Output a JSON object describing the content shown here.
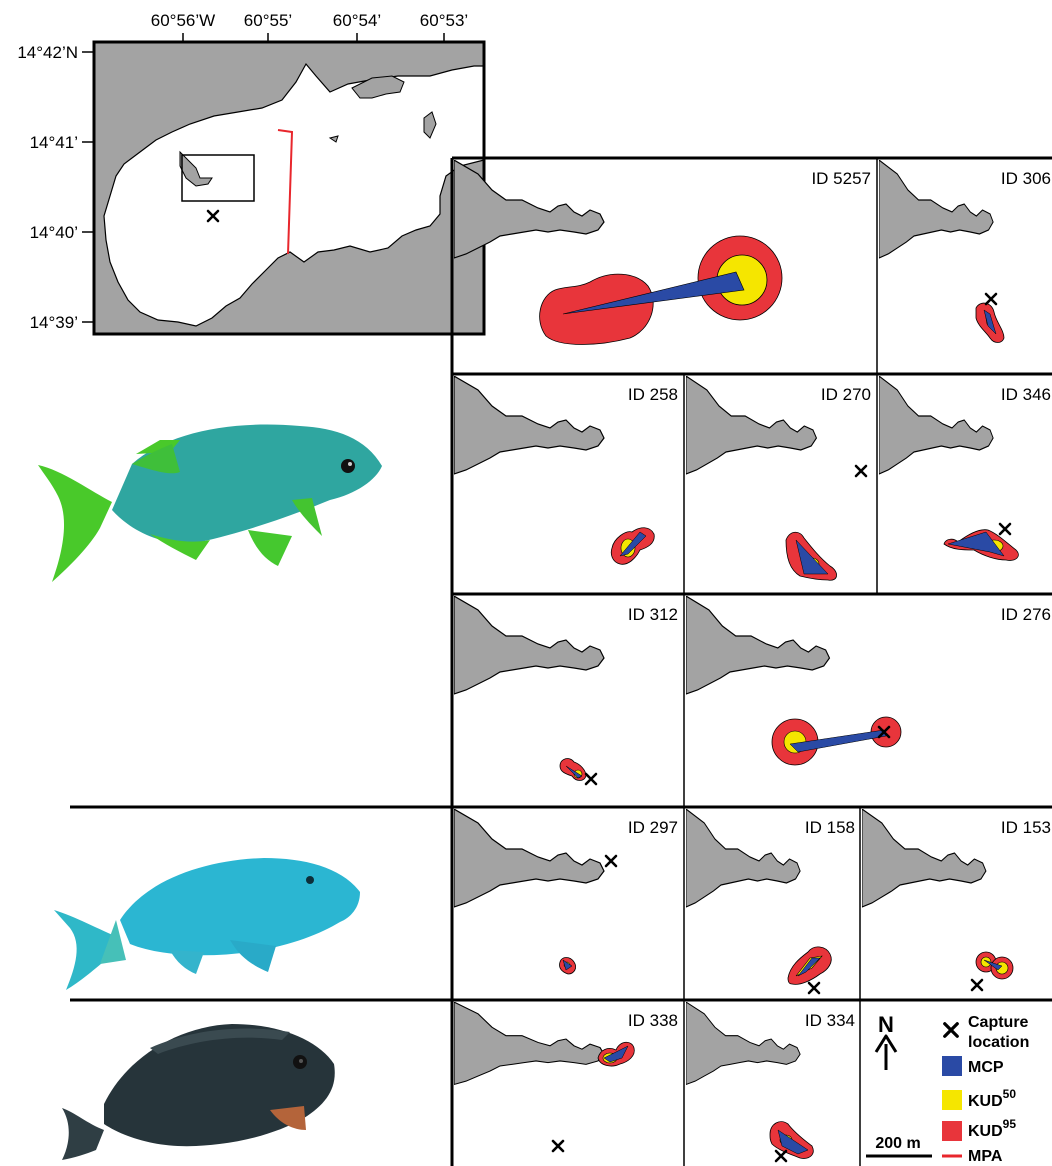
{
  "overview_map": {
    "lon_ticks": [
      "60°56’W",
      "60°55’",
      "60°54’",
      "60°53’"
    ],
    "lat_ticks": [
      "14°42’N",
      "14°41’",
      "14°40’",
      "14°39’"
    ],
    "colors": {
      "land": "#a3a3a3",
      "mpa_line": "#e8262c"
    }
  },
  "panels": [
    {
      "id": "ID 5257",
      "group": "fish-1"
    },
    {
      "id": "ID 306",
      "group": "fish-1"
    },
    {
      "id": "ID 258",
      "group": "fish-1"
    },
    {
      "id": "ID 270",
      "group": "fish-1"
    },
    {
      "id": "ID 346",
      "group": "fish-1"
    },
    {
      "id": "ID 312",
      "group": "fish-1"
    },
    {
      "id": "ID 276",
      "group": "fish-1"
    },
    {
      "id": "ID 297",
      "group": "fish-2"
    },
    {
      "id": "ID 158",
      "group": "fish-2"
    },
    {
      "id": "ID 153",
      "group": "fish-2"
    },
    {
      "id": "ID 338",
      "group": "fish-3"
    },
    {
      "id": "ID 334",
      "group": "fish-3"
    }
  ],
  "legend": {
    "north": "N",
    "capture_line1": "Capture",
    "capture_line2": "location",
    "mcp": "MCP",
    "kud50_base": "KUD",
    "kud50_sup": "50",
    "kud95_base": "KUD",
    "kud95_sup": "95",
    "mpa": "MPA",
    "scale": "200 m",
    "colors": {
      "mcp": "#2a4aa5",
      "kud50": "#f5e600",
      "kud95": "#e8353b",
      "mpa": "#e8262c"
    }
  },
  "fish_images": [
    {
      "name": "green-fish",
      "colors": {
        "body": "#2fa6a0",
        "fins": "#3fc22a"
      }
    },
    {
      "name": "parrotfish",
      "colors": {
        "body": "#2bb6d2",
        "fins": "#2fb8c8"
      }
    },
    {
      "name": "dark-surgeonfish",
      "colors": {
        "body": "#26343a",
        "fins": "#3a4a50"
      }
    }
  ]
}
